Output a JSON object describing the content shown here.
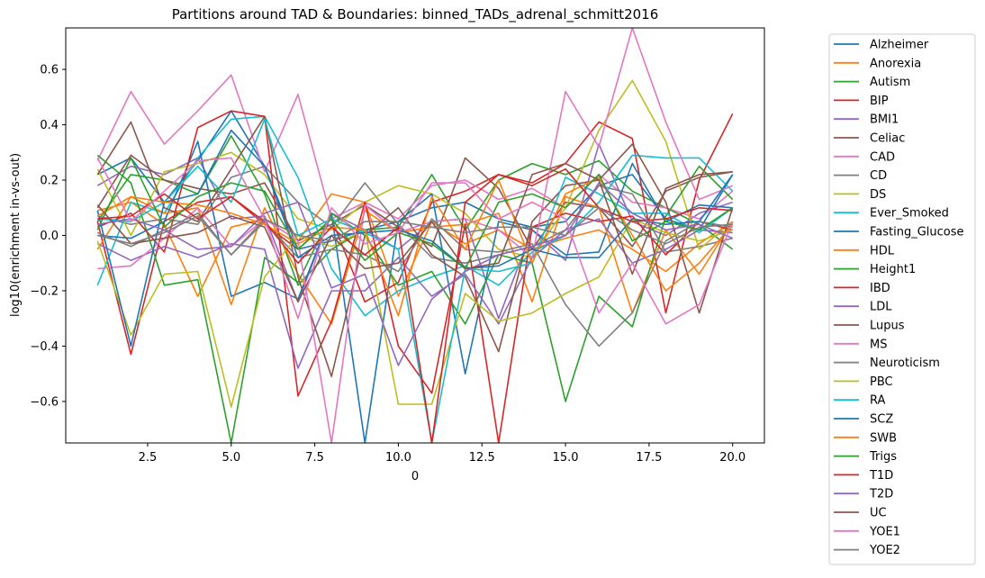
{
  "chart_data": {
    "type": "line",
    "title": "Partitions around TAD & Boundaries: binned_TADs_adrenal_schmitt2016",
    "xlabel": "0",
    "ylabel": "log10(enrichment in-vs-out)",
    "xlim": [
      0.05,
      20.95
    ],
    "ylim": [
      -0.75,
      0.75
    ],
    "xticks": [
      2.5,
      5.0,
      7.5,
      10.0,
      12.5,
      15.0,
      17.5,
      20.0
    ],
    "xtick_labels": [
      "2.5",
      "5.0",
      "7.5",
      "10.0",
      "12.5",
      "15.0",
      "17.5",
      "20.0"
    ],
    "yticks": [
      -0.6,
      -0.4,
      -0.2,
      0.0,
      0.2,
      0.4,
      0.6
    ],
    "ytick_labels": [
      "−0.6",
      "−0.4",
      "−0.2",
      "0.0",
      "0.2",
      "0.4",
      "0.6"
    ],
    "grid": false,
    "legend_position": "outside-right",
    "x": [
      1,
      2,
      3,
      4,
      5,
      6,
      7,
      8,
      9,
      10,
      11,
      12,
      13,
      14,
      15,
      16,
      17,
      18,
      19,
      20
    ],
    "series": [
      {
        "name": "Alzheimer",
        "color": "#1f77b4",
        "values": [
          0.22,
          0.28,
          0.12,
          0.27,
          0.45,
          0.25,
          -0.05,
          -0.02,
          0.02,
          0.05,
          0.1,
          0.12,
          0.06,
          0.03,
          0.05,
          0.18,
          0.22,
          0.06,
          0.02,
          0.22
        ]
      },
      {
        "name": "Anorexia",
        "color": "#ff7f0e",
        "values": [
          0.09,
          0.12,
          0.04,
          -0.22,
          0.03,
          0.06,
          -0.02,
          0.15,
          0.12,
          -0.22,
          0.05,
          -0.03,
          0.02,
          -0.05,
          -0.01,
          0.02,
          -0.05,
          -0.13,
          -0.03,
          0.05
        ]
      },
      {
        "name": "Autism",
        "color": "#2ca02c",
        "values": [
          0.05,
          0.22,
          0.2,
          0.15,
          0.36,
          0.15,
          -0.18,
          -0.05,
          0.02,
          0.03,
          0.22,
          0.02,
          0.2,
          0.26,
          0.22,
          0.27,
          0.16,
          0.1,
          0.04,
          -0.05
        ]
      },
      {
        "name": "BIP",
        "color": "#d62728",
        "values": [
          0.05,
          -0.43,
          0.05,
          0.12,
          0.14,
          0.04,
          -0.05,
          0.06,
          -0.24,
          -0.17,
          0.12,
          0.16,
          0.22,
          0.19,
          0.26,
          0.41,
          0.35,
          -0.28,
          0.2,
          0.44
        ]
      },
      {
        "name": "BMI1",
        "color": "#9467bd",
        "values": [
          0.18,
          0.25,
          0.22,
          0.28,
          0.06,
          0.07,
          -0.24,
          0.08,
          0.02,
          -0.05,
          0.05,
          0.06,
          -0.3,
          0.02,
          -0.09,
          0.33,
          0.05,
          0.0,
          0.08,
          0.12
        ]
      },
      {
        "name": "Celiac",
        "color": "#8c564b",
        "values": [
          0.1,
          0.29,
          0.2,
          0.17,
          0.15,
          0.19,
          -0.02,
          0.04,
          0.11,
          0.03,
          -0.04,
          0.28,
          0.17,
          -0.05,
          0.12,
          0.1,
          -0.04,
          0.16,
          0.21,
          0.23
        ]
      },
      {
        "name": "CAD",
        "color": "#e377c2",
        "values": [
          0.27,
          0.52,
          0.33,
          0.45,
          0.58,
          0.23,
          0.51,
          0.06,
          0.12,
          0.06,
          0.18,
          0.2,
          0.13,
          0.17,
          0.1,
          0.22,
          0.12,
          0.1,
          0.06,
          0.16
        ]
      },
      {
        "name": "CD",
        "color": "#7f7f7f",
        "values": [
          0.07,
          0.04,
          0.06,
          0.04,
          0.21,
          0.25,
          0.12,
          0.03,
          0.19,
          0.04,
          -0.08,
          -0.1,
          -0.07,
          -0.04,
          0.02,
          0.18,
          0.15,
          -0.06,
          -0.04,
          -0.01
        ]
      },
      {
        "name": "DS",
        "color": "#bcbd22",
        "values": [
          0.24,
          0.0,
          0.23,
          0.26,
          0.3,
          0.22,
          0.06,
          0.02,
          0.12,
          0.18,
          0.15,
          0.08,
          -0.05,
          -0.08,
          0.1,
          0.38,
          0.56,
          0.34,
          -0.05,
          0.05
        ]
      },
      {
        "name": "Ever_Smoked",
        "color": "#17becf",
        "values": [
          -0.18,
          0.12,
          0.08,
          0.28,
          0.42,
          0.43,
          0.21,
          -0.12,
          -0.29,
          -0.2,
          -0.15,
          -0.11,
          -0.18,
          -0.06,
          0.0,
          0.12,
          0.29,
          0.28,
          0.28,
          0.16
        ]
      },
      {
        "name": "Fasting_Glucose",
        "color": "#1f77b4",
        "values": [
          0.0,
          -0.01,
          0.05,
          0.34,
          -0.22,
          -0.17,
          -0.23,
          0.08,
          -0.75,
          0.05,
          0.15,
          -0.5,
          0.05,
          0.02,
          -0.07,
          -0.06,
          0.26,
          0.05,
          0.11,
          0.1
        ]
      },
      {
        "name": "HDL",
        "color": "#ff7f0e",
        "values": [
          -0.05,
          0.14,
          0.08,
          0.1,
          -0.25,
          0.1,
          -0.14,
          -0.32,
          0.09,
          0.01,
          0.03,
          0.04,
          0.08,
          -0.24,
          0.14,
          0.1,
          -0.28,
          0.02,
          -0.14,
          0.05
        ]
      },
      {
        "name": "Height1",
        "color": "#2ca02c",
        "values": [
          0.29,
          0.19,
          -0.18,
          -0.16,
          -0.75,
          -0.08,
          -0.17,
          0.08,
          0.0,
          -0.18,
          -0.13,
          -0.32,
          -0.07,
          -0.1,
          -0.6,
          -0.22,
          -0.33,
          0.07,
          0.25,
          0.13
        ]
      },
      {
        "name": "IBD",
        "color": "#d62728",
        "values": [
          0.03,
          0.08,
          -0.06,
          0.39,
          0.45,
          0.43,
          -0.58,
          -0.31,
          0.12,
          -0.4,
          -0.57,
          0.04,
          -0.75,
          0.03,
          0.08,
          0.05,
          0.07,
          -0.07,
          0.05,
          0.02
        ]
      },
      {
        "name": "LDL",
        "color": "#9467bd",
        "values": [
          -0.03,
          -0.09,
          -0.04,
          -0.08,
          -0.03,
          -0.05,
          -0.48,
          -0.2,
          -0.2,
          -0.08,
          -0.22,
          -0.14,
          -0.32,
          -0.08,
          0.02,
          0.06,
          -0.1,
          -0.05,
          0.02,
          0.01
        ]
      },
      {
        "name": "Lupus",
        "color": "#8c564b",
        "values": [
          0.22,
          0.41,
          0.1,
          0.05,
          0.24,
          0.43,
          -0.15,
          -0.51,
          0.0,
          0.1,
          -0.07,
          -0.15,
          -0.42,
          0.05,
          0.18,
          0.2,
          0.33,
          0.12,
          -0.28,
          0.1
        ]
      },
      {
        "name": "MS",
        "color": "#e377c2",
        "values": [
          -0.12,
          -0.11,
          -0.01,
          0.1,
          -0.04,
          0.06,
          -0.02,
          -0.75,
          0.11,
          0.01,
          0.05,
          0.06,
          0.02,
          -0.08,
          0.52,
          0.32,
          0.75,
          0.41,
          0.13,
          0.18
        ]
      },
      {
        "name": "Neuroticism",
        "color": "#7f7f7f",
        "values": [
          0.01,
          -0.04,
          0.02,
          0.08,
          -0.07,
          0.05,
          -0.08,
          -0.05,
          -0.07,
          -0.13,
          0.06,
          -0.05,
          -0.06,
          -0.03,
          -0.25,
          -0.4,
          -0.28,
          -0.02,
          0.05,
          0.03
        ]
      },
      {
        "name": "PBC",
        "color": "#bcbd22",
        "values": [
          -0.02,
          -0.36,
          -0.14,
          -0.13,
          -0.62,
          -0.15,
          0.0,
          -0.04,
          0.02,
          -0.61,
          -0.61,
          -0.21,
          -0.31,
          -0.28,
          -0.21,
          -0.15,
          0.06,
          0.01,
          -0.02,
          0.02
        ]
      },
      {
        "name": "RA",
        "color": "#17becf",
        "values": [
          0.06,
          0.05,
          0.12,
          0.25,
          0.12,
          0.42,
          0.0,
          0.06,
          0.01,
          -0.05,
          -0.75,
          -0.12,
          -0.13,
          -0.1,
          0.21,
          0.15,
          0.08,
          0.08,
          0.01,
          0.1
        ]
      },
      {
        "name": "SCZ",
        "color": "#1f77b4",
        "values": [
          0.09,
          -0.4,
          0.12,
          0.15,
          0.38,
          0.25,
          -0.08,
          0.0,
          0.01,
          0.02,
          -0.02,
          -0.12,
          -0.11,
          -0.05,
          -0.08,
          -0.08,
          0.06,
          0.04,
          0.05,
          0.22
        ]
      },
      {
        "name": "SWB",
        "color": "#ff7f0e",
        "values": [
          0.07,
          0.14,
          0.12,
          0.11,
          0.08,
          0.04,
          -0.03,
          0.03,
          0.02,
          -0.29,
          0.14,
          -0.05,
          0.2,
          -0.1,
          0.15,
          0.21,
          0.0,
          -0.2,
          -0.1,
          0.04
        ]
      },
      {
        "name": "Trigs",
        "color": "#2ca02c",
        "values": [
          0.02,
          0.28,
          0.03,
          0.14,
          0.19,
          0.16,
          -0.05,
          0.06,
          -0.09,
          0.01,
          -0.03,
          -0.12,
          0.12,
          0.15,
          0.1,
          0.22,
          -0.02,
          0.05,
          0.02,
          0.1
        ]
      },
      {
        "name": "T1D",
        "color": "#d62728",
        "values": [
          0.06,
          0.07,
          0.15,
          0.06,
          0.14,
          0.05,
          -0.1,
          0.03,
          -0.07,
          0.03,
          -0.75,
          0.12,
          0.22,
          0.18,
          0.24,
          0.1,
          0.05,
          0.06,
          0.1,
          0.09
        ]
      },
      {
        "name": "T2D",
        "color": "#9467bd",
        "values": [
          0.04,
          0.06,
          0.02,
          -0.05,
          -0.04,
          0.08,
          0.12,
          -0.19,
          -0.14,
          -0.47,
          -0.23,
          -0.13,
          -0.07,
          -0.04,
          0.0,
          0.19,
          0.08,
          0.02,
          0.04,
          -0.01
        ]
      },
      {
        "name": "UC",
        "color": "#8c564b",
        "values": [
          0.11,
          -0.03,
          -0.01,
          0.01,
          0.07,
          0.03,
          -0.24,
          0.0,
          -0.12,
          -0.1,
          0.05,
          -0.12,
          -0.1,
          0.22,
          0.26,
          0.2,
          -0.14,
          0.17,
          0.22,
          0.23
        ]
      },
      {
        "name": "YOE1",
        "color": "#e377c2",
        "values": [
          0.28,
          0.05,
          0.16,
          0.27,
          0.28,
          0.06,
          -0.3,
          0.1,
          -0.03,
          0.01,
          0.19,
          0.19,
          0.06,
          0.12,
          0.06,
          -0.28,
          -0.1,
          -0.32,
          -0.25,
          0.05
        ]
      },
      {
        "name": "YOE2",
        "color": "#7f7f7f",
        "values": [
          0.0,
          -0.03,
          0.01,
          0.07,
          -0.07,
          0.06,
          0.0,
          -0.02,
          0.05,
          0.05,
          0.03,
          0.01,
          0.03,
          0.03,
          0.0,
          0.1,
          0.02,
          -0.03,
          0.03,
          0.04
        ]
      }
    ]
  }
}
